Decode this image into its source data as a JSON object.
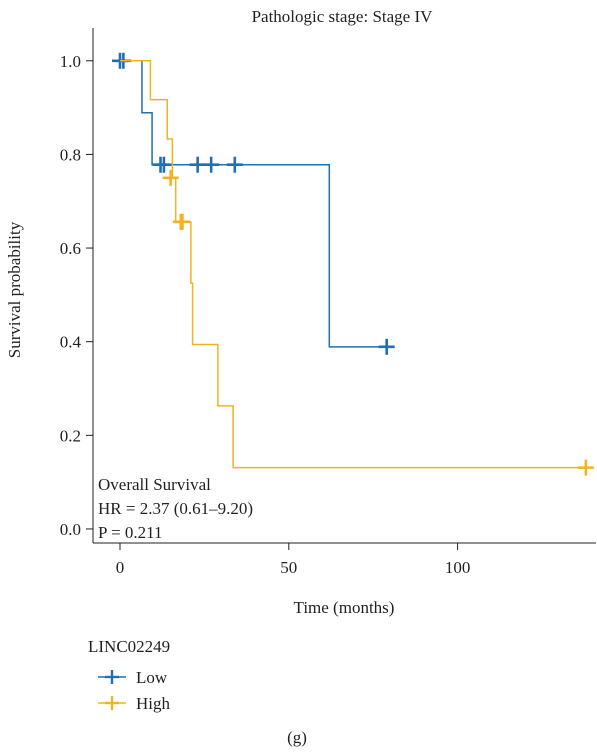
{
  "chart_data": {
    "type": "line",
    "subtype": "kaplan-meier",
    "title": "Pathologic stage: Stage IV",
    "xlabel": "Time (months)",
    "ylabel": "Survival probability",
    "xlim": [
      -8,
      141
    ],
    "ylim": [
      -0.03,
      1.07
    ],
    "xticks": [
      0,
      50,
      100
    ],
    "yticks": [
      0.0,
      0.2,
      0.4,
      0.6,
      0.8,
      1.0
    ],
    "ytick_labels": [
      "0.0",
      "0.2",
      "0.4",
      "0.6",
      "0.8",
      "1.0"
    ],
    "grid": false,
    "annotations": [
      "Overall Survival",
      "HR = 2.37 (0.61–9.20)",
      "P = 0.211"
    ],
    "legend": {
      "title": "LINC02249",
      "position": "below",
      "entries": [
        "Low",
        "High"
      ]
    },
    "caption": "(g)",
    "series": [
      {
        "name": "Low",
        "color": "#1f6fb4",
        "steps": [
          [
            0,
            1.0
          ],
          [
            6.5,
            0.889
          ],
          [
            9.5,
            0.778
          ],
          [
            62,
            0.389
          ],
          [
            79,
            0.389
          ]
        ],
        "censored": [
          [
            0,
            1.0
          ],
          [
            1,
            1.0
          ],
          [
            12,
            0.778
          ],
          [
            13,
            0.778
          ],
          [
            23,
            0.778
          ],
          [
            27,
            0.778
          ],
          [
            34,
            0.778
          ],
          [
            79,
            0.389
          ]
        ]
      },
      {
        "name": "High",
        "color": "#f0b323",
        "steps": [
          [
            0,
            1.0
          ],
          [
            9,
            0.917
          ],
          [
            14,
            0.833
          ],
          [
            15.5,
            0.75
          ],
          [
            16,
            0.75
          ],
          [
            16.5,
            0.656
          ],
          [
            20.5,
            0.656
          ],
          [
            21,
            0.525
          ],
          [
            21.5,
            0.394
          ],
          [
            28.5,
            0.394
          ],
          [
            29,
            0.263
          ],
          [
            33,
            0.263
          ],
          [
            33.5,
            0.131
          ],
          [
            138,
            0.131
          ]
        ],
        "censored": [
          [
            15,
            0.75
          ],
          [
            18,
            0.656
          ],
          [
            18.5,
            0.656
          ],
          [
            138,
            0.131
          ]
        ]
      }
    ]
  }
}
